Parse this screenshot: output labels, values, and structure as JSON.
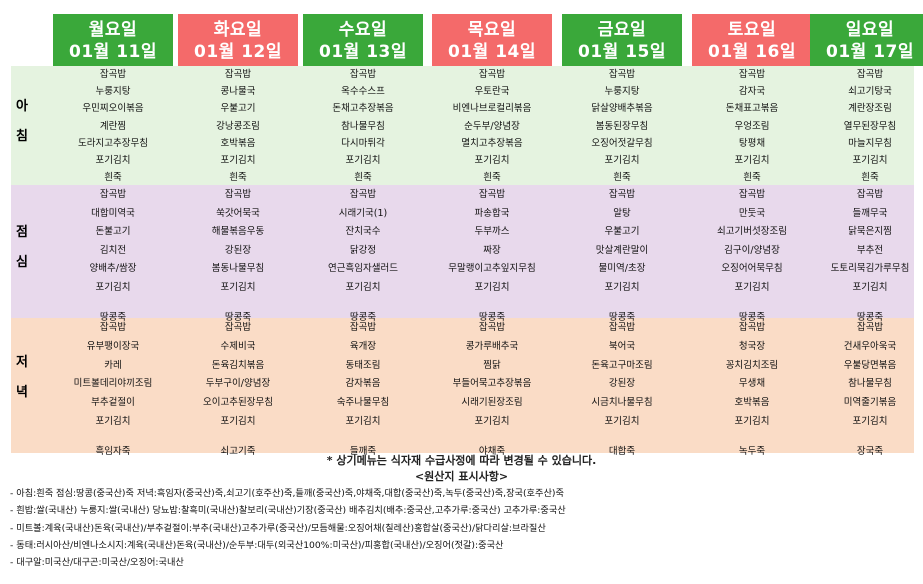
{
  "days": [
    {
      "day": "월요일",
      "date": "01월 11일",
      "color": "#3aa83a"
    },
    {
      "day": "화요일",
      "date": "01월 12일",
      "color": "#f46a6a"
    },
    {
      "day": "수요일",
      "date": "01월 13일",
      "color": "#3aa83a"
    },
    {
      "day": "목요일",
      "date": "01월 14일",
      "color": "#f46a6a"
    },
    {
      "day": "금요일",
      "date": "01월 15일",
      "color": "#3aa83a"
    },
    {
      "day": "토요일",
      "date": "01월 16일",
      "color": "#f46a6a"
    },
    {
      "day": "일요일",
      "date": "01월 17일",
      "color": "#3aa83a"
    }
  ],
  "meals": {
    "breakfast_label": [
      "아",
      "침"
    ],
    "lunch_label": [
      "점",
      "심"
    ],
    "dinner_label": [
      "저",
      "녁"
    ]
  },
  "breakfast": [
    [
      "잡곡밥",
      "누룽지탕",
      "우민찌오이볶음",
      "계란찜",
      "도라지고추장무침",
      "포기김치",
      "흰죽"
    ],
    [
      "잡곡밥",
      "콩나물국",
      "우불고기",
      "강낭콩조림",
      "호박볶음",
      "포기김치",
      "흰죽"
    ],
    [
      "잡곡밥",
      "옥수수스프",
      "돈채고추장볶음",
      "참나물무침",
      "다시마튀각",
      "포기김치",
      "흰죽"
    ],
    [
      "잡곡밥",
      "우토란국",
      "비엔나브로컬리볶음",
      "순두부/양념장",
      "멸치고추장볶음",
      "포기김치",
      "흰죽"
    ],
    [
      "잡곡밥",
      "누룽지탕",
      "닭살양배추볶음",
      "봄동된장무침",
      "오징어젓갈무침",
      "포기김치",
      "흰죽"
    ],
    [
      "잡곡밥",
      "감자국",
      "돈채표고볶음",
      "우엉조림",
      "탕평채",
      "포기김치",
      "흰죽"
    ],
    [
      "잡곡밥",
      "쇠고기탕국",
      "계란장조림",
      "열무된장무침",
      "마늘지무침",
      "포기김치",
      "흰죽"
    ]
  ],
  "lunch": [
    [
      "잡곡밥",
      "대합미역국",
      "돈불고기",
      "김치전",
      "양배추/쌈장",
      "포기김치",
      "",
      "땅콩죽"
    ],
    [
      "잡곡밥",
      "쑥갓어묵국",
      "해물볶음우동",
      "강된장",
      "봄동나물무침",
      "포기김치",
      "",
      "땅콩죽"
    ],
    [
      "잡곡밥",
      "시래기국(1)",
      "잔치국수",
      "닭강정",
      "연근흑임자샐러드",
      "포기김치",
      "",
      "땅콩죽"
    ],
    [
      "잡곡밥",
      "파송합국",
      "두부까스",
      "짜장",
      "무말랭이고추잎지무침",
      "포기김치",
      "",
      "땅콩죽"
    ],
    [
      "잡곡밥",
      "알탕",
      "우불고기",
      "맛살계란말이",
      "물미역/초장",
      "포기김치",
      "",
      "땅콩죽"
    ],
    [
      "잡곡밥",
      "만둣국",
      "쇠고기버섯장조림",
      "김구이/양념장",
      "오징어어묵무침",
      "포기김치",
      "",
      "땅콩죽"
    ],
    [
      "잡곡밥",
      "들깨무국",
      "닭묵은지찜",
      "부추전",
      "도토리묵김가루무침",
      "포기김치",
      "",
      "땅콩죽"
    ]
  ],
  "dinner": [
    [
      "잡곡밥",
      "유부팽이장국",
      "카레",
      "미트볼데리야끼조림",
      "부추겉절이",
      "포기김치",
      "",
      "흑임자죽"
    ],
    [
      "잡곡밥",
      "수제비국",
      "돈육김치볶음",
      "두부구이/양념장",
      "오이고추된장무침",
      "포기김치",
      "",
      "쇠고기죽"
    ],
    [
      "잡곡밥",
      "육개장",
      "동태조림",
      "감자볶음",
      "숙주나물무침",
      "포기김치",
      "",
      "들깨죽"
    ],
    [
      "잡곡밥",
      "콩가루배추국",
      "찜닭",
      "부들어묵고추장볶음",
      "시래기된장조림",
      "포기김치",
      "",
      "야채죽"
    ],
    [
      "잡곡밥",
      "북어국",
      "돈육고구마조림",
      "강된장",
      "시금치나물무침",
      "포기김치",
      "",
      "대합죽"
    ],
    [
      "잡곡밥",
      "청국장",
      "꽁치김치조림",
      "무생채",
      "호박볶음",
      "포기김치",
      "",
      "녹두죽"
    ],
    [
      "잡곡밥",
      "건새우아욱국",
      "우불당면볶음",
      "참나물무침",
      "미역줄기볶음",
      "포기김치",
      "",
      "장국죽"
    ]
  ],
  "notice": "* 상기메뉴는 식자재 수급사정에 따라 변경될 수 있습니다.",
  "origin_title": "<원산지 표시사항>",
  "origin_notes": [
    "- 아침:흰죽  점심:땅콩(중국산)죽  저녁:흑임자(중국산)죽,쇠고기(호주산)죽,들깨(중국산)죽,야채죽,대합(중국산)죽,녹두(중국산)죽,장국(호주산)죽",
    "- 흰밥:쌀(국내산)  누룽지:쌀(국내산)  당뇨밥:찰흑미(국내산)찰보리(국내산)기장(중국산)  배추김치(배추:중국산,고추가루:중국산)  고추가루:중국산",
    "- 미트볼:계육(국내산)돈육(국내산)/부추겉절이:부추(국내산)고추가루(중국산)/모듬해물:오징어채(칠레산)홍합살(중국산)/닭다리살:브라질산",
    "- 동태:러시아산/비엔나소시지:계육(국내산)돈육(국내산)/순두부:대두(외국산100%:미국산)/피홍합(국내산)/오징어(젓갈):중국산",
    "- 대구알:미국산/대구곤:미국산/오징어:국내산"
  ]
}
